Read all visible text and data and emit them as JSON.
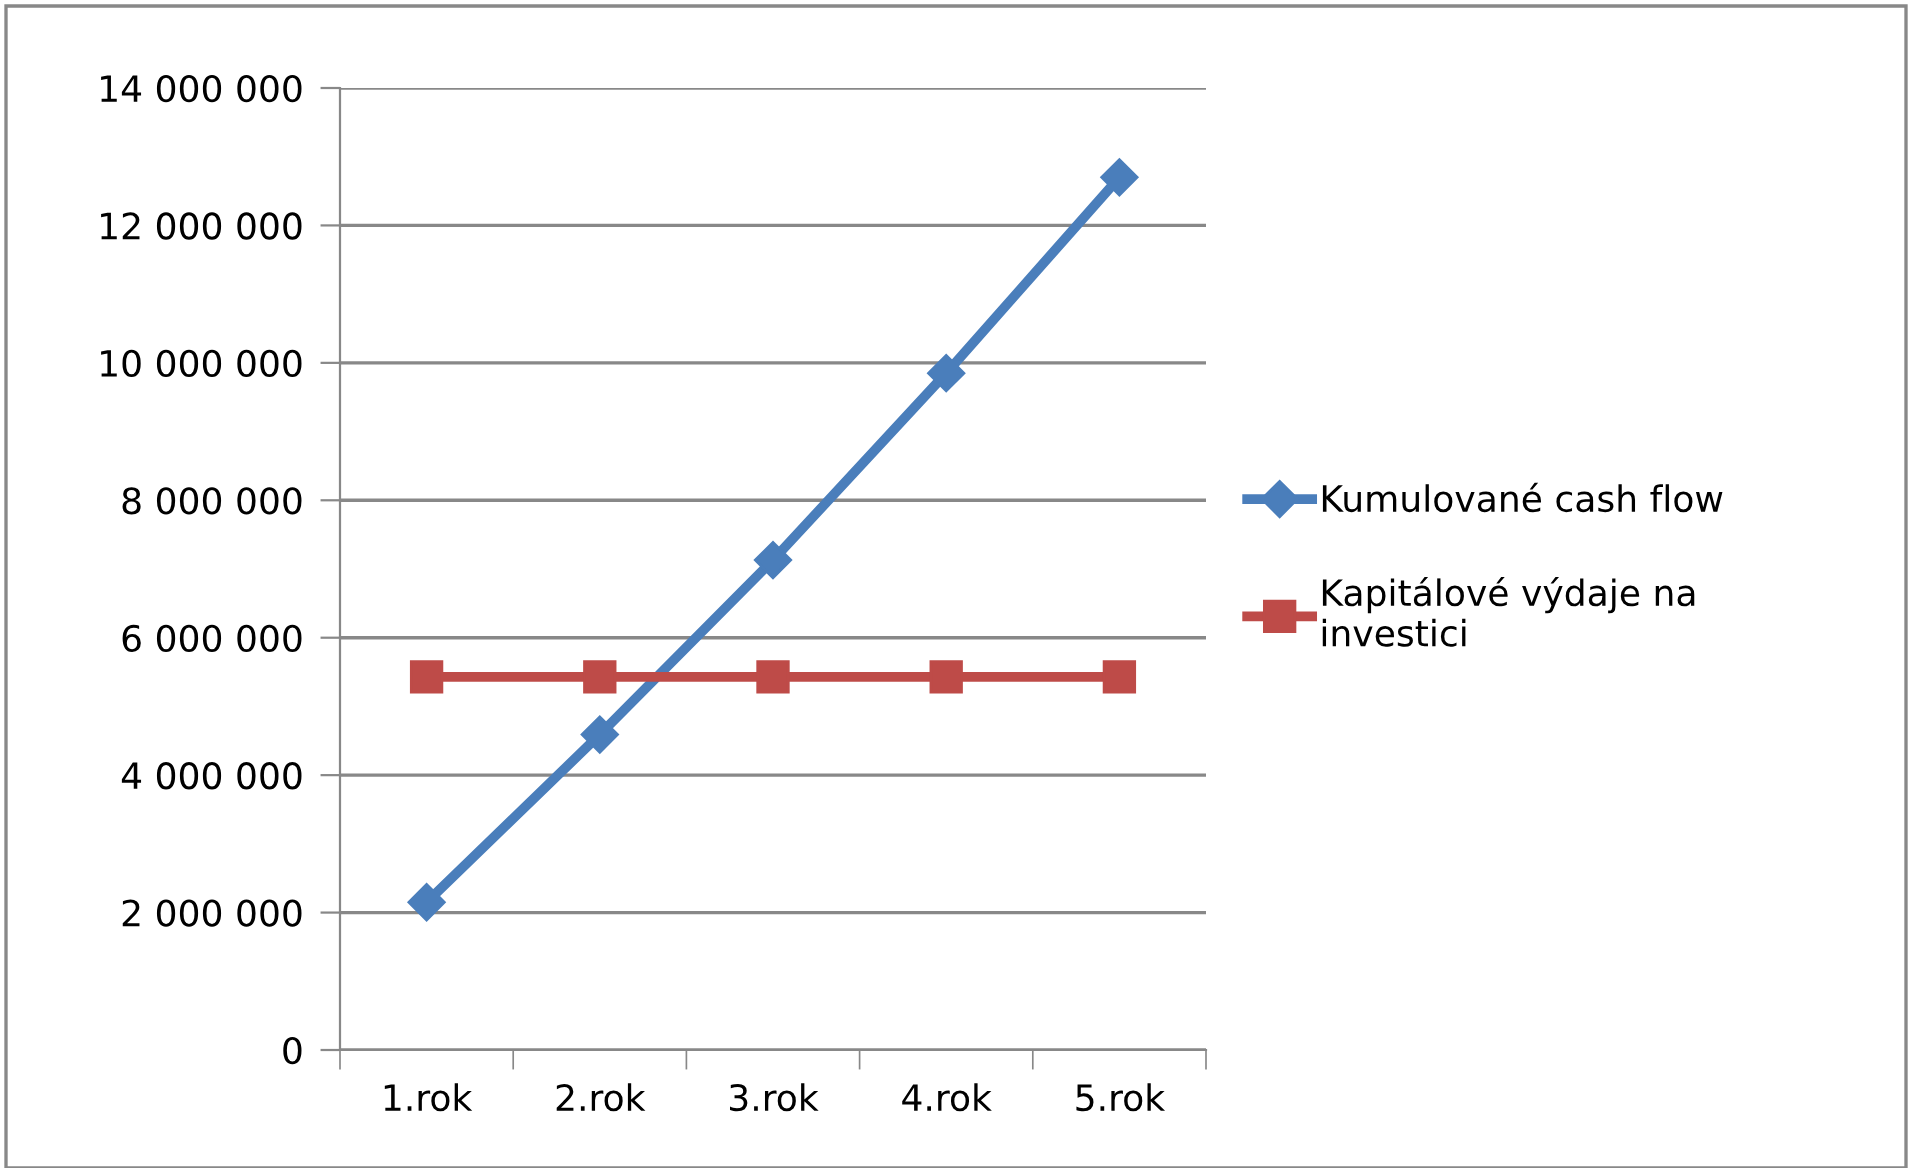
{
  "chart_data": {
    "type": "line",
    "categories": [
      "1.rok",
      "2.rok",
      "3.rok",
      "4.rok",
      "5.rok"
    ],
    "series": [
      {
        "name": "Kumulované cash flow",
        "color": "#4a7ebb",
        "values": [
          2150000,
          4590000,
          7130000,
          9850000,
          12700000
        ],
        "marker": "diamond"
      },
      {
        "name": "Kapitálové výdaje na\ninvestici",
        "color": "#be4b48",
        "values": [
          5430000,
          5430000,
          5430000,
          5430000,
          5430000
        ],
        "marker": "square"
      }
    ],
    "ylim": [
      0,
      14000000
    ],
    "yticks": [
      0,
      {
        "value": 2000000,
        "label": "2 000 000"
      },
      {
        "value": 4000000,
        "label": "4 000 000"
      },
      {
        "value": 6000000,
        "label": "6 000 000"
      },
      {
        "value": 8000000,
        "label": "8 000 000"
      },
      {
        "value": 10000000,
        "label": "10 000 000"
      },
      {
        "value": 12000000,
        "label": "12 000 000"
      },
      {
        "value": 14000000,
        "label": "14 000 000"
      }
    ],
    "grid": "y",
    "legend": "right",
    "line_style": "solid"
  }
}
